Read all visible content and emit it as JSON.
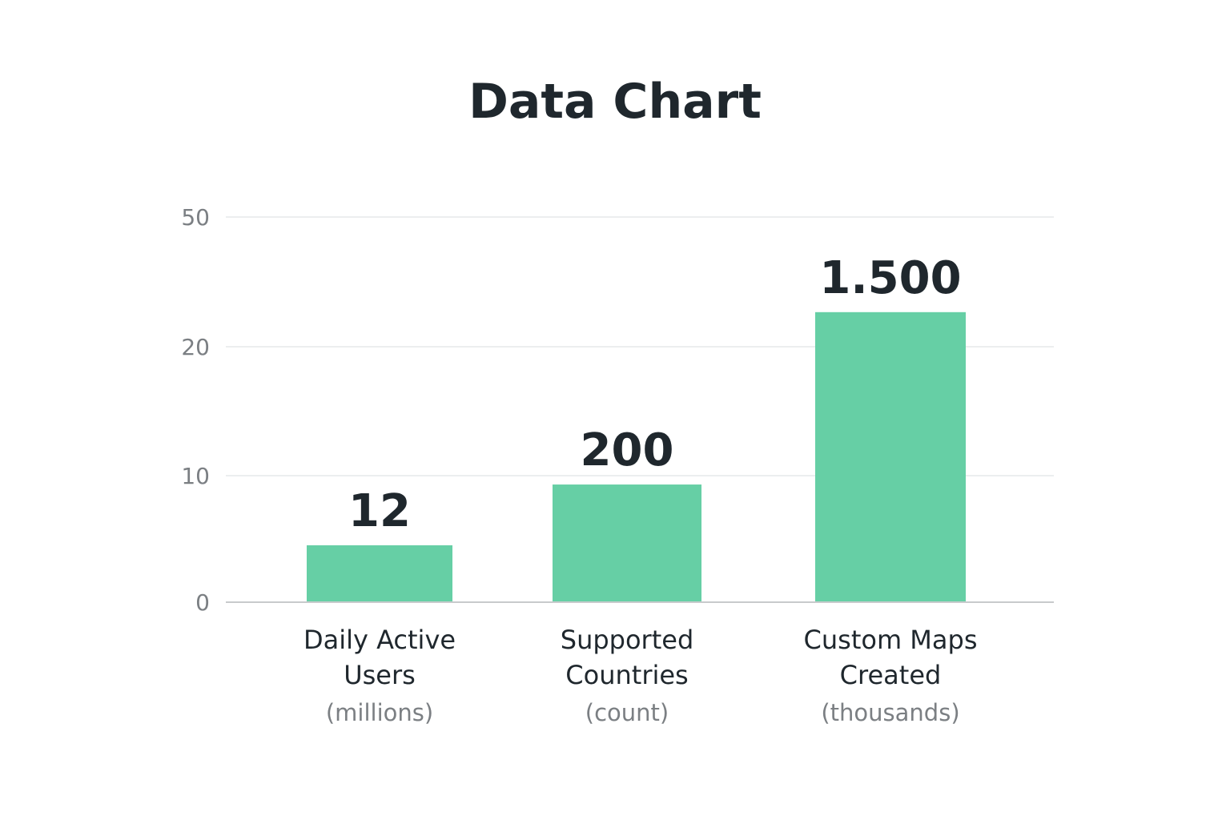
{
  "chart_data": {
    "type": "bar",
    "title": "Data Chart",
    "xlabel": "",
    "ylabel": "",
    "y_ticks": [
      {
        "value": 0,
        "label": "0"
      },
      {
        "value": 10,
        "label": "10"
      },
      {
        "value": 20,
        "label": "20"
      },
      {
        "value": 50,
        "label": "50"
      }
    ],
    "y_scale": "irregular (tick spacing equal; ticks 0, 10, 20, 50)",
    "grid": true,
    "legend": "none",
    "bar_color": "#66cfa5",
    "categories": [
      {
        "name": "Daily Active Users",
        "name_lines": [
          "Daily Active",
          "Users"
        ],
        "unit": "(millions)"
      },
      {
        "name": "Supported Countries",
        "name_lines": [
          "Supported",
          "Countries"
        ],
        "unit": "(count)"
      },
      {
        "name": "Custom Maps Created",
        "name_lines": [
          "Custom Maps",
          "Created"
        ],
        "unit": "(thousands)"
      }
    ],
    "values": [
      12,
      200,
      1500
    ],
    "value_labels": [
      "12",
      "200",
      "1.500"
    ],
    "bar_axis_readings": [
      4.5,
      9.3,
      28
    ]
  }
}
